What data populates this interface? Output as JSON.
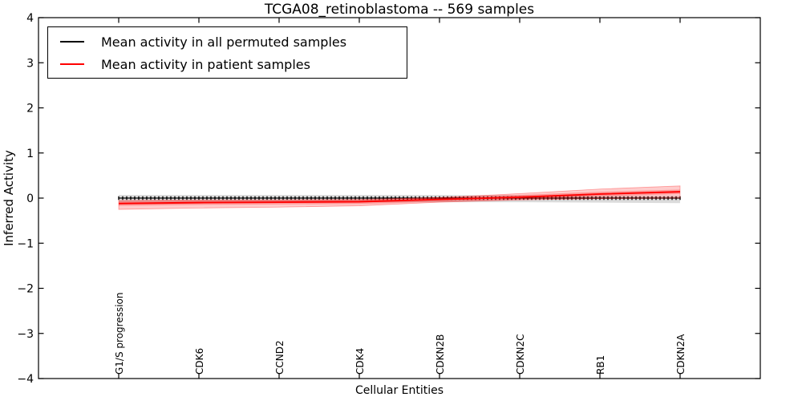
{
  "chart_data": {
    "type": "line",
    "title": "TCGA08_retinoblastoma -- 569 samples",
    "xlabel": "Cellular Entities",
    "ylabel": "Inferred Activity",
    "ylim": [
      -4,
      4
    ],
    "grid": false,
    "legend_position": "upper left",
    "background_color": "#ffffff",
    "axis_color": "#000000",
    "y_tick_values": [
      4,
      3,
      2,
      1,
      0,
      -1,
      -2,
      -3,
      -4
    ],
    "y_tick_labels": [
      "4",
      "3",
      "2",
      "1",
      "0",
      "−1",
      "−2",
      "−3",
      "−4"
    ],
    "categories": [
      "G1/S progression",
      "CDK6",
      "CCND2",
      "CDK4",
      "CDKN2B",
      "CDKN2C",
      "RB1",
      "CDKN2A"
    ],
    "dense_point_markers": true,
    "series": [
      {
        "name": "Mean activity in all permuted samples",
        "color": "#000000",
        "band_color": "rgba(0,0,0,0.14)",
        "values": [
          0.0,
          0.0,
          0.0,
          0.0,
          0.0,
          0.0,
          0.0,
          0.0
        ],
        "band_high": [
          0.07,
          0.07,
          0.07,
          0.07,
          0.07,
          0.06,
          0.05,
          0.05
        ],
        "band_low": [
          -0.09,
          -0.09,
          -0.09,
          -0.09,
          -0.09,
          -0.09,
          -0.1,
          -0.11
        ]
      },
      {
        "name": "Mean activity in patient samples",
        "color": "#ff0000",
        "band_color": "rgba(255,0,0,0.20)",
        "values": [
          -0.12,
          -0.1,
          -0.09,
          -0.08,
          -0.03,
          0.02,
          0.09,
          0.14
        ],
        "band_high": [
          -0.05,
          -0.04,
          -0.04,
          -0.03,
          0.01,
          0.1,
          0.2,
          0.27
        ],
        "band_low": [
          -0.25,
          -0.22,
          -0.2,
          -0.17,
          -0.09,
          -0.04,
          -0.01,
          0.0
        ]
      }
    ]
  }
}
